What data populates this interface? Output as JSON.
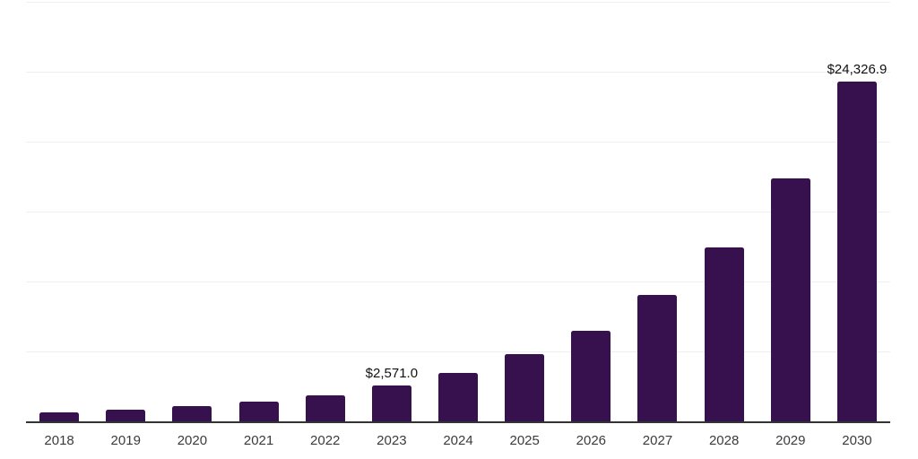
{
  "chart": {
    "background_color": "#ffffff",
    "bar_color": "#36114D",
    "gridline_color": "#efefef",
    "axis_line_color": "#333333",
    "data_label_color": "#111111",
    "tick_label_color": "#3b3b3b"
  },
  "chart_data": {
    "type": "bar",
    "title": "",
    "xlabel": "",
    "ylabel": "",
    "categories": [
      "2018",
      "2019",
      "2020",
      "2021",
      "2022",
      "2023",
      "2024",
      "2025",
      "2026",
      "2027",
      "2028",
      "2029",
      "2030"
    ],
    "values": [
      650,
      850,
      1070,
      1430,
      1860,
      2571.0,
      3440,
      4790,
      6470,
      9020,
      12450,
      17370,
      24326.9
    ],
    "data_labels": {
      "2023": "$2,571.0",
      "2030": "$24,326.9"
    },
    "ylim": [
      0,
      30000
    ],
    "gridline_step": 5000,
    "grid": true,
    "legend_position": "none",
    "y_tick_labels_visible": false
  }
}
